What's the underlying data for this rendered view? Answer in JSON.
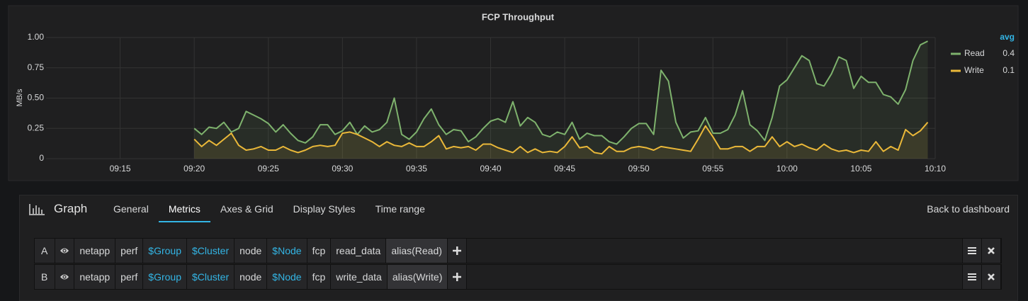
{
  "chart_data": {
    "type": "line",
    "title": "FCP Throughput",
    "y_label": "MB/s",
    "x": [
      "09:20:00",
      "09:20:30",
      "09:21:00",
      "09:21:30",
      "09:22:00",
      "09:22:30",
      "09:23:00",
      "09:23:30",
      "09:24:00",
      "09:24:30",
      "09:25:00",
      "09:25:30",
      "09:26:00",
      "09:26:30",
      "09:27:00",
      "09:27:30",
      "09:28:00",
      "09:28:30",
      "09:29:00",
      "09:29:30",
      "09:30:00",
      "09:30:30",
      "09:31:00",
      "09:31:30",
      "09:32:00",
      "09:32:30",
      "09:33:00",
      "09:33:30",
      "09:34:00",
      "09:34:30",
      "09:35:00",
      "09:35:30",
      "09:36:00",
      "09:36:30",
      "09:37:00",
      "09:37:30",
      "09:38:00",
      "09:38:30",
      "09:39:00",
      "09:39:30",
      "09:40:00",
      "09:40:30",
      "09:41:00",
      "09:41:30",
      "09:42:00",
      "09:42:30",
      "09:43:00",
      "09:43:30",
      "09:44:00",
      "09:44:30",
      "09:45:00",
      "09:45:30",
      "09:46:00",
      "09:46:30",
      "09:47:00",
      "09:47:30",
      "09:48:00",
      "09:48:30",
      "09:49:00",
      "09:49:30",
      "09:50:00",
      "09:50:30",
      "09:51:00",
      "09:51:30",
      "09:52:00",
      "09:52:30",
      "09:53:00",
      "09:53:30",
      "09:54:00",
      "09:54:30",
      "09:55:00",
      "09:55:30",
      "09:56:00",
      "09:56:30",
      "09:57:00",
      "09:57:30",
      "09:58:00",
      "09:58:30",
      "09:59:00",
      "09:59:30",
      "10:00:00",
      "10:00:30",
      "10:01:00",
      "10:01:30",
      "10:02:00",
      "10:02:30",
      "10:03:00",
      "10:03:30",
      "10:04:00",
      "10:04:30",
      "10:05:00",
      "10:05:30",
      "10:06:00",
      "10:06:30",
      "10:07:00",
      "10:07:30",
      "10:08:00",
      "10:08:30",
      "10:09:00",
      "10:09:30"
    ],
    "series": [
      {
        "name": "Read",
        "color": "#7eb26d",
        "avg": 0.4,
        "values": [
          0.25,
          0.2,
          0.26,
          0.25,
          0.3,
          0.22,
          0.25,
          0.39,
          0.36,
          0.33,
          0.29,
          0.22,
          0.28,
          0.21,
          0.15,
          0.13,
          0.18,
          0.28,
          0.28,
          0.2,
          0.23,
          0.3,
          0.2,
          0.27,
          0.22,
          0.24,
          0.3,
          0.5,
          0.2,
          0.16,
          0.22,
          0.33,
          0.41,
          0.28,
          0.2,
          0.24,
          0.23,
          0.14,
          0.18,
          0.25,
          0.31,
          0.33,
          0.3,
          0.47,
          0.27,
          0.34,
          0.3,
          0.2,
          0.18,
          0.22,
          0.2,
          0.3,
          0.16,
          0.21,
          0.19,
          0.19,
          0.14,
          0.12,
          0.18,
          0.25,
          0.29,
          0.29,
          0.2,
          0.73,
          0.64,
          0.3,
          0.17,
          0.22,
          0.23,
          0.34,
          0.21,
          0.21,
          0.24,
          0.36,
          0.56,
          0.28,
          0.23,
          0.15,
          0.34,
          0.6,
          0.65,
          0.75,
          0.85,
          0.81,
          0.62,
          0.6,
          0.7,
          0.84,
          0.81,
          0.58,
          0.68,
          0.63,
          0.63,
          0.53,
          0.51,
          0.45,
          0.57,
          0.81,
          0.94,
          0.97
        ]
      },
      {
        "name": "Write",
        "color": "#eab839",
        "avg": 0.1,
        "values": [
          0.16,
          0.1,
          0.15,
          0.11,
          0.16,
          0.21,
          0.11,
          0.07,
          0.08,
          0.1,
          0.07,
          0.07,
          0.1,
          0.07,
          0.05,
          0.07,
          0.1,
          0.11,
          0.1,
          0.11,
          0.21,
          0.22,
          0.2,
          0.17,
          0.14,
          0.1,
          0.14,
          0.11,
          0.1,
          0.13,
          0.1,
          0.1,
          0.14,
          0.19,
          0.08,
          0.1,
          0.09,
          0.1,
          0.07,
          0.12,
          0.12,
          0.09,
          0.07,
          0.05,
          0.1,
          0.05,
          0.08,
          0.05,
          0.06,
          0.05,
          0.1,
          0.18,
          0.09,
          0.1,
          0.05,
          0.04,
          0.1,
          0.06,
          0.06,
          0.09,
          0.1,
          0.09,
          0.07,
          0.1,
          0.09,
          0.08,
          0.07,
          0.06,
          0.16,
          0.27,
          0.18,
          0.08,
          0.08,
          0.1,
          0.1,
          0.06,
          0.1,
          0.1,
          0.18,
          0.1,
          0.14,
          0.1,
          0.12,
          0.09,
          0.07,
          0.12,
          0.08,
          0.06,
          0.07,
          0.05,
          0.07,
          0.06,
          0.14,
          0.06,
          0.1,
          0.07,
          0.24,
          0.19,
          0.23,
          0.3
        ]
      }
    ],
    "xlim": [
      "09:10",
      "10:10"
    ],
    "xticks": [
      "09:15",
      "09:20",
      "09:25",
      "09:30",
      "09:35",
      "09:40",
      "09:45",
      "09:50",
      "09:55",
      "10:00",
      "10:05",
      "10:10"
    ],
    "ylim": [
      0,
      1
    ],
    "yticks": [
      0,
      {
        "value": 0.25,
        "label": "0.25"
      },
      {
        "value": 0.5,
        "label": "0.50"
      },
      {
        "value": 0.75,
        "label": "0.75"
      },
      {
        "value": 1,
        "label": "1.00"
      }
    ],
    "grid": true,
    "fill": true,
    "legend": {
      "position": "right",
      "header": "avg"
    }
  },
  "editor": {
    "title": "Graph",
    "tabs": [
      "General",
      "Metrics",
      "Axes & Grid",
      "Display Styles",
      "Time range"
    ],
    "active_tab": "Metrics",
    "back_link": "Back to dashboard",
    "queries": [
      {
        "ref": "A",
        "segments": [
          "netapp",
          "perf",
          "$Group",
          "$Cluster",
          "node",
          "$Node",
          "fcp",
          "read_data",
          "alias(Read)"
        ]
      },
      {
        "ref": "B",
        "segments": [
          "netapp",
          "perf",
          "$Group",
          "$Cluster",
          "node",
          "$Node",
          "fcp",
          "write_data",
          "alias(Write)"
        ]
      }
    ]
  }
}
